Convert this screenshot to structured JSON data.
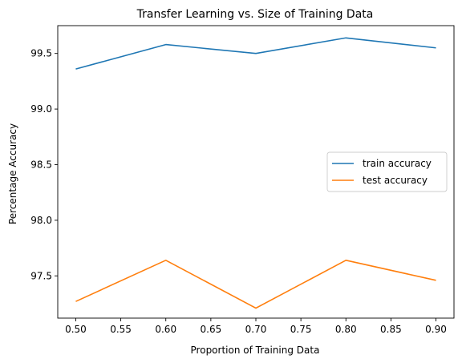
{
  "chart_data": {
    "type": "line",
    "title": "Transfer Learning vs. Size of Training Data",
    "xlabel": "Proportion of Training Data",
    "ylabel": "Percentage Accuracy",
    "x": [
      0.5,
      0.6,
      0.7,
      0.8,
      0.9
    ],
    "xlim": [
      0.48,
      0.92
    ],
    "ylim": [
      97.12,
      99.75
    ],
    "xticks": [
      "0.50",
      "0.55",
      "0.60",
      "0.65",
      "0.70",
      "0.75",
      "0.80",
      "0.85",
      "0.90"
    ],
    "yticks": [
      "97.5",
      "98.0",
      "98.5",
      "99.0",
      "99.5"
    ],
    "grid": false,
    "legend_position": "center-right",
    "series": [
      {
        "name": "train accuracy",
        "color": "#1f77b4",
        "values": [
          99.36,
          99.58,
          99.5,
          99.64,
          99.55
        ]
      },
      {
        "name": "test accuracy",
        "color": "#ff7f0e",
        "values": [
          97.27,
          97.64,
          97.21,
          97.64,
          97.46
        ]
      }
    ]
  }
}
